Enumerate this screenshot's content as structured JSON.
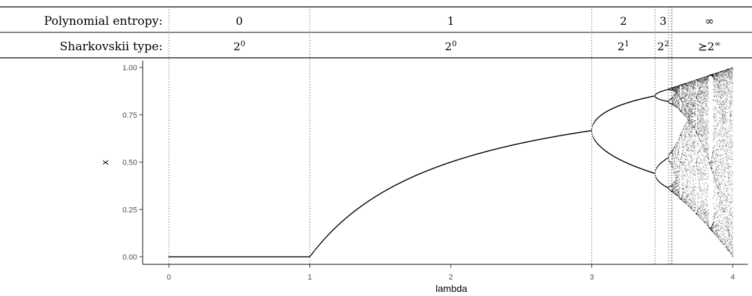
{
  "chart_data": {
    "type": "scatter",
    "title": "",
    "xlabel": "lambda",
    "ylabel": "x",
    "xlim": [
      0,
      4
    ],
    "ylim": [
      0,
      1
    ],
    "x_ticks": [
      "0",
      "1",
      "2",
      "3",
      "4"
    ],
    "y_ticks": [
      "0.00",
      "0.25",
      "0.50",
      "0.75",
      "1.00"
    ],
    "grid": false,
    "legend": "none",
    "point_color": "#000000",
    "boundaries": [
      0,
      1,
      3,
      3.449,
      3.544,
      3.5644,
      3.5699
    ],
    "series": [
      {
        "name": "",
        "x": [
          0,
          1.0
        ],
        "y": [
          0,
          0
        ]
      },
      {
        "name": "",
        "x": [
          1.0,
          1.5,
          2.0,
          2.5,
          3.0
        ],
        "y": [
          0,
          0.333,
          0.5,
          0.6,
          0.667
        ]
      },
      {
        "name": "",
        "x": [
          3.0,
          3.2,
          3.449
        ],
        "y": [
          0.667,
          0.799,
          0.849
        ]
      },
      {
        "name": "",
        "x": [
          3.0,
          3.2,
          3.449
        ],
        "y": [
          0.667,
          0.513,
          0.44
        ]
      },
      {
        "name": "",
        "x": [
          3.57,
          4.0
        ],
        "y": [
          0.9,
          1.0
        ]
      }
    ]
  },
  "table": {
    "rows": [
      {
        "label": "Polynomial entropy:",
        "cells": [
          {
            "base": "0",
            "sup": ""
          },
          {
            "base": "1",
            "sup": ""
          },
          {
            "base": "2",
            "sup": ""
          },
          {
            "base": "3",
            "sup": ""
          },
          {
            "base": "∞",
            "sup": ""
          }
        ]
      },
      {
        "label": "Sharkovskii type:",
        "cells": [
          {
            "base": "2",
            "sup": "0"
          },
          {
            "base": "2",
            "sup": "0"
          },
          {
            "base": "2",
            "sup": "1"
          },
          {
            "base": "2",
            "sup": "2"
          },
          {
            "base": "⪰2",
            "sup": "∞"
          }
        ]
      }
    ]
  }
}
